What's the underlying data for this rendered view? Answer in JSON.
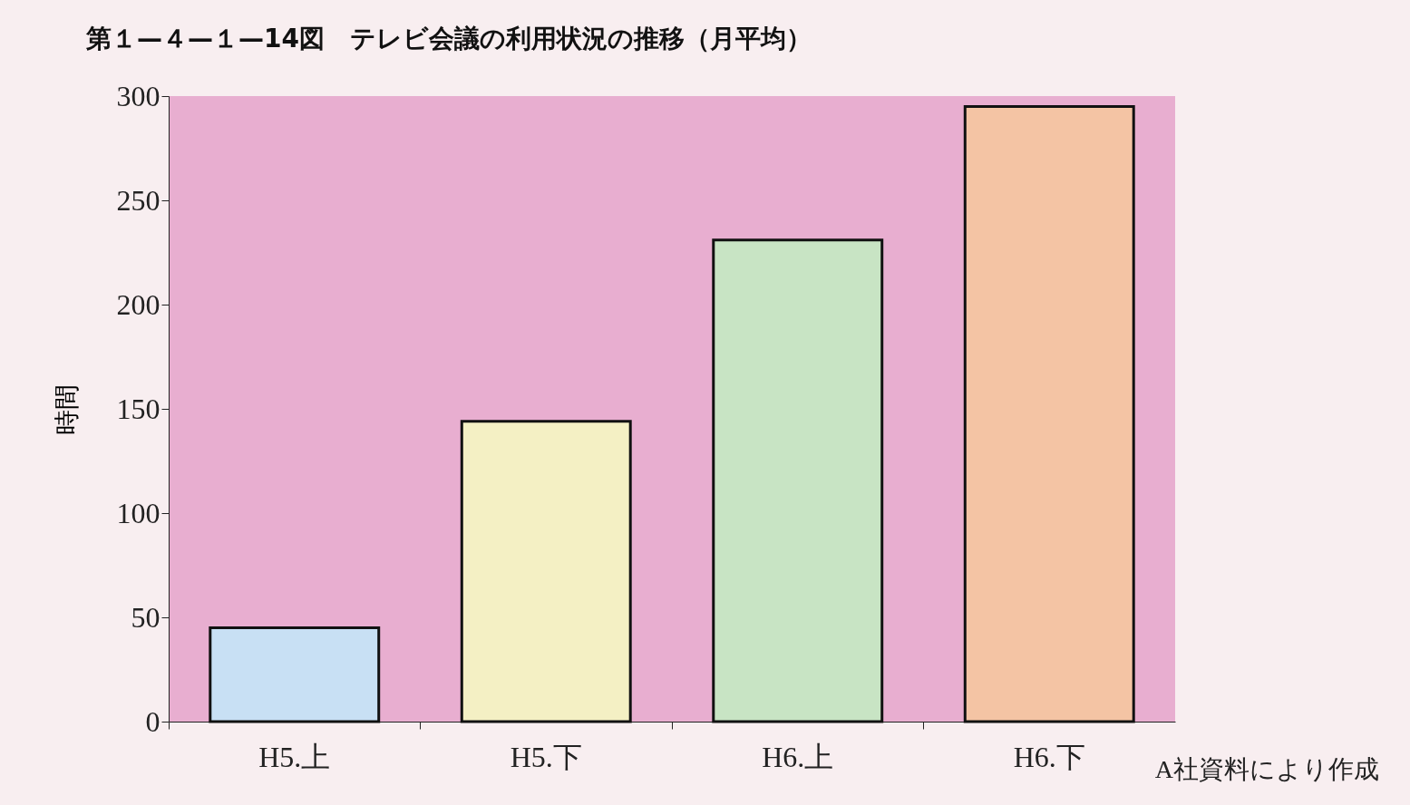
{
  "chart_data": {
    "type": "bar",
    "title": "第１—４—１—14図　テレビ会議の利用状況の推移（月平均）",
    "ylabel": "時間",
    "categories": [
      "H5.上",
      "H5.下",
      "H6.上",
      "H6.下"
    ],
    "values": [
      45,
      144,
      231,
      295
    ],
    "colors": [
      "#c8e0f4",
      "#f4f0c4",
      "#c8e4c4",
      "#f4c4a4"
    ],
    "ylim": [
      0,
      300
    ],
    "yticks": [
      0,
      50,
      100,
      150,
      200,
      250,
      300
    ],
    "grid": false,
    "annotations": [
      "A社資料により作成"
    ]
  }
}
